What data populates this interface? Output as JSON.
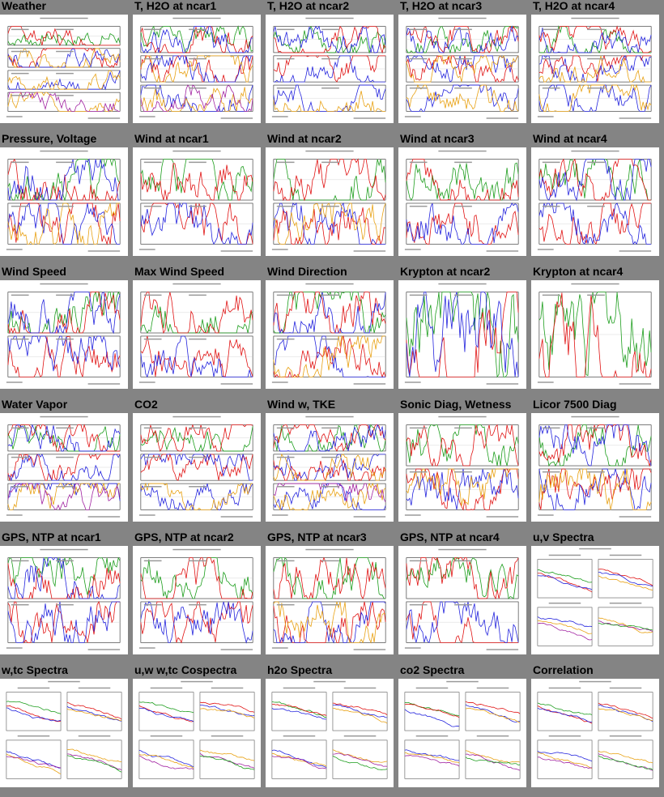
{
  "page": {
    "background": "#848484",
    "rows": [
      [
        {
          "title": "Weather",
          "kind": "timeseries",
          "panels": 4
        },
        {
          "title": "T, H2O at ncar1",
          "kind": "timeseries",
          "panels": 3
        },
        {
          "title": "T, H2O at ncar2",
          "kind": "timeseries",
          "panels": 3
        },
        {
          "title": "T, H2O at ncar3",
          "kind": "timeseries",
          "panels": 3
        },
        {
          "title": "T, H2O at ncar4",
          "kind": "timeseries",
          "panels": 3
        }
      ],
      [
        {
          "title": "Pressure, Voltage",
          "kind": "timeseries",
          "panels": 2
        },
        {
          "title": "Wind at ncar1",
          "kind": "timeseries",
          "panels": 2
        },
        {
          "title": "Wind at ncar2",
          "kind": "timeseries",
          "panels": 2
        },
        {
          "title": "Wind at ncar3",
          "kind": "timeseries",
          "panels": 2
        },
        {
          "title": "Wind at ncar4",
          "kind": "timeseries",
          "panels": 2
        }
      ],
      [
        {
          "title": "Wind Speed",
          "kind": "timeseries",
          "panels": 2
        },
        {
          "title": "Max Wind Speed",
          "kind": "timeseries",
          "panels": 2
        },
        {
          "title": "Wind Direction",
          "kind": "timeseries",
          "panels": 2
        },
        {
          "title": "Krypton at ncar2",
          "kind": "timeseries",
          "panels": 1
        },
        {
          "title": "Krypton at ncar4",
          "kind": "timeseries",
          "panels": 1
        }
      ],
      [
        {
          "title": "Water Vapor",
          "kind": "timeseries",
          "panels": 3
        },
        {
          "title": "CO2",
          "kind": "timeseries",
          "panels": 3
        },
        {
          "title": "Wind w, TKE",
          "kind": "timeseries",
          "panels": 3
        },
        {
          "title": "Sonic Diag, Wetness",
          "kind": "timeseries",
          "panels": 2
        },
        {
          "title": "Licor 7500 Diag",
          "kind": "timeseries",
          "panels": 2
        }
      ],
      [
        {
          "title": "GPS, NTP at ncar1",
          "kind": "timeseries",
          "panels": 2
        },
        {
          "title": "GPS, NTP at ncar2",
          "kind": "timeseries",
          "panels": 2
        },
        {
          "title": "GPS, NTP at ncar3",
          "kind": "timeseries",
          "panels": 2
        },
        {
          "title": "GPS, NTP at ncar4",
          "kind": "timeseries",
          "panels": 2
        },
        {
          "title": "u,v Spectra",
          "kind": "spectra",
          "panels": 4
        }
      ],
      [
        {
          "title": "w,tc Spectra",
          "kind": "spectra",
          "panels": 4
        },
        {
          "title": "u,w w,tc Cospectra",
          "kind": "spectra",
          "panels": 4
        },
        {
          "title": "h2o Spectra",
          "kind": "spectra",
          "panels": 4
        },
        {
          "title": "co2 Spectra",
          "kind": "spectra",
          "panels": 4
        },
        {
          "title": "Correlation",
          "kind": "spectra",
          "panels": 4
        }
      ]
    ]
  }
}
